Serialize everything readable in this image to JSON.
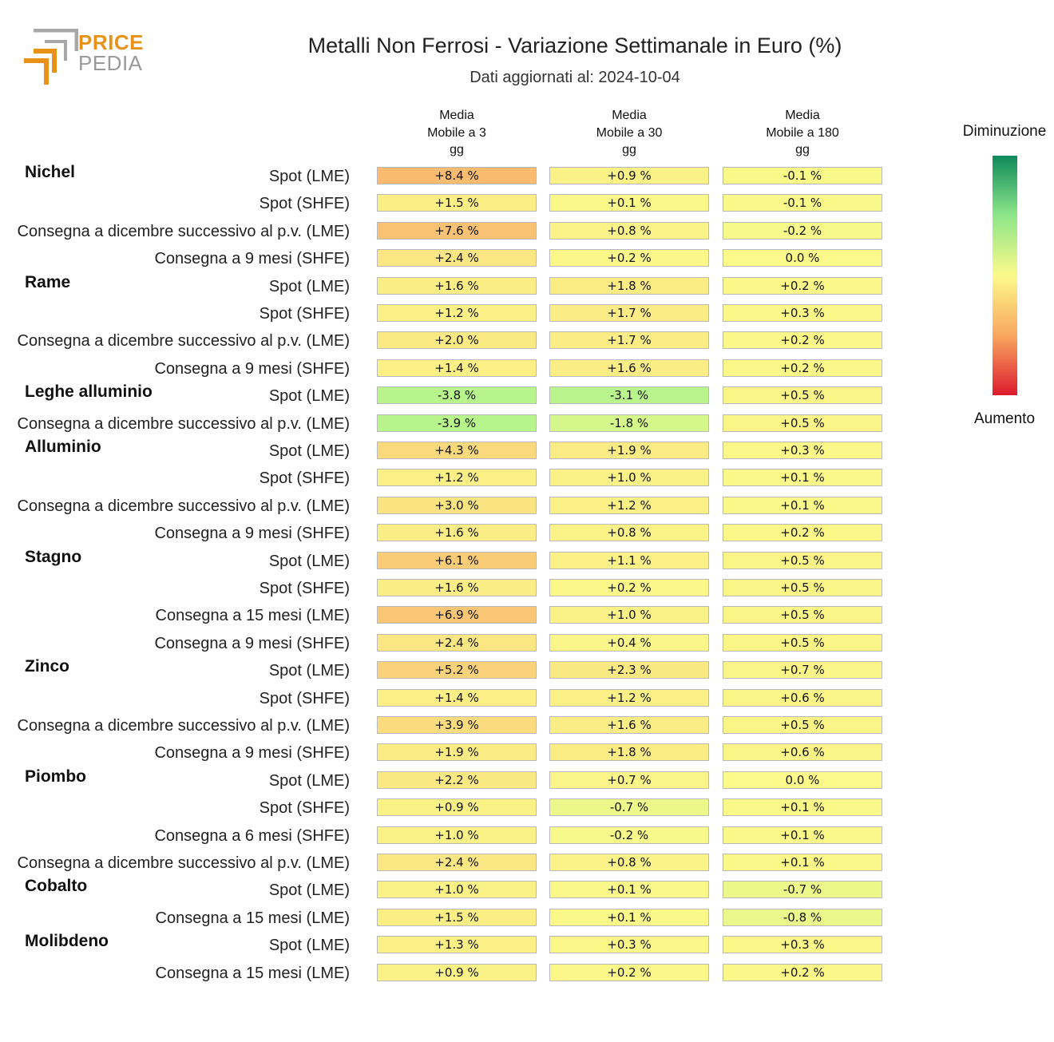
{
  "logo": {
    "line1": "PRICE",
    "line2": "PEDIA"
  },
  "chart_data": {
    "type": "heatmap",
    "title": "Metalli Non Ferrosi - Variazione Settimanale in Euro (%)",
    "subtitle": "Dati aggiornati al: 2024-10-04",
    "columns": [
      "Media\nMobile a 3\ngg",
      "Media\nMobile a 30\ngg",
      "Media\nMobile a 180\ngg"
    ],
    "unit": "%",
    "legend": {
      "top": "Diminuzione",
      "bottom": "Aumento",
      "colors": [
        "#0e8a5a",
        "#8ee68a",
        "#fbf98a",
        "#f9a860",
        "#dc1b2e"
      ]
    },
    "groups": [
      {
        "name": "Nichel",
        "rows": [
          {
            "label": "Spot (LME)",
            "values": [
              8.4,
              0.9,
              -0.1
            ]
          },
          {
            "label": "Spot (SHFE)",
            "values": [
              1.5,
              0.1,
              -0.1
            ]
          },
          {
            "label": "Consegna a dicembre successivo al p.v. (LME)",
            "values": [
              7.6,
              0.8,
              -0.2
            ]
          },
          {
            "label": "Consegna a 9 mesi (SHFE)",
            "values": [
              2.4,
              0.2,
              0.0
            ]
          }
        ]
      },
      {
        "name": "Rame",
        "rows": [
          {
            "label": "Spot (LME)",
            "values": [
              1.6,
              1.8,
              0.2
            ]
          },
          {
            "label": "Spot (SHFE)",
            "values": [
              1.2,
              1.7,
              0.3
            ]
          },
          {
            "label": "Consegna a dicembre successivo al p.v. (LME)",
            "values": [
              2.0,
              1.7,
              0.2
            ]
          },
          {
            "label": "Consegna a 9 mesi (SHFE)",
            "values": [
              1.4,
              1.6,
              0.2
            ]
          }
        ]
      },
      {
        "name": "Leghe alluminio",
        "rows": [
          {
            "label": "Spot (LME)",
            "values": [
              -3.8,
              -3.1,
              0.5
            ]
          },
          {
            "label": "Consegna a dicembre successivo al p.v. (LME)",
            "values": [
              -3.9,
              -1.8,
              0.5
            ]
          }
        ]
      },
      {
        "name": "Alluminio",
        "rows": [
          {
            "label": "Spot (LME)",
            "values": [
              4.3,
              1.9,
              0.3
            ]
          },
          {
            "label": "Spot (SHFE)",
            "values": [
              1.2,
              1.0,
              0.1
            ]
          },
          {
            "label": "Consegna a dicembre successivo al p.v. (LME)",
            "values": [
              3.0,
              1.2,
              0.1
            ]
          },
          {
            "label": "Consegna a 9 mesi (SHFE)",
            "values": [
              1.6,
              0.8,
              0.2
            ]
          }
        ]
      },
      {
        "name": "Stagno",
        "rows": [
          {
            "label": "Spot (LME)",
            "values": [
              6.1,
              1.1,
              0.5
            ]
          },
          {
            "label": "Spot (SHFE)",
            "values": [
              1.6,
              0.2,
              0.5
            ]
          },
          {
            "label": "Consegna a 15 mesi (LME)",
            "values": [
              6.9,
              1.0,
              0.5
            ]
          },
          {
            "label": "Consegna a 9 mesi (SHFE)",
            "values": [
              2.4,
              0.4,
              0.5
            ]
          }
        ]
      },
      {
        "name": "Zinco",
        "rows": [
          {
            "label": "Spot (LME)",
            "values": [
              5.2,
              2.3,
              0.7
            ]
          },
          {
            "label": "Spot (SHFE)",
            "values": [
              1.4,
              1.2,
              0.6
            ]
          },
          {
            "label": "Consegna a dicembre successivo al p.v. (LME)",
            "values": [
              3.9,
              1.6,
              0.5
            ]
          },
          {
            "label": "Consegna a 9 mesi (SHFE)",
            "values": [
              1.9,
              1.8,
              0.6
            ]
          }
        ]
      },
      {
        "name": "Piombo",
        "rows": [
          {
            "label": "Spot (LME)",
            "values": [
              2.2,
              0.7,
              0.0
            ]
          },
          {
            "label": "Spot (SHFE)",
            "values": [
              0.9,
              -0.7,
              0.1
            ]
          },
          {
            "label": "Consegna a 6 mesi (SHFE)",
            "values": [
              1.0,
              -0.2,
              0.1
            ]
          },
          {
            "label": "Consegna a dicembre successivo al p.v. (LME)",
            "values": [
              2.4,
              0.8,
              0.1
            ]
          }
        ]
      },
      {
        "name": "Cobalto",
        "rows": [
          {
            "label": "Spot (LME)",
            "values": [
              1.0,
              0.1,
              -0.7
            ]
          },
          {
            "label": "Consegna a 15 mesi (LME)",
            "values": [
              1.5,
              0.1,
              -0.8
            ]
          }
        ]
      },
      {
        "name": "Molibdeno",
        "rows": [
          {
            "label": "Spot (LME)",
            "values": [
              1.3,
              0.3,
              0.3
            ]
          },
          {
            "label": "Consegna a 15 mesi (LME)",
            "values": [
              0.9,
              0.2,
              0.2
            ]
          }
        ]
      }
    ]
  }
}
